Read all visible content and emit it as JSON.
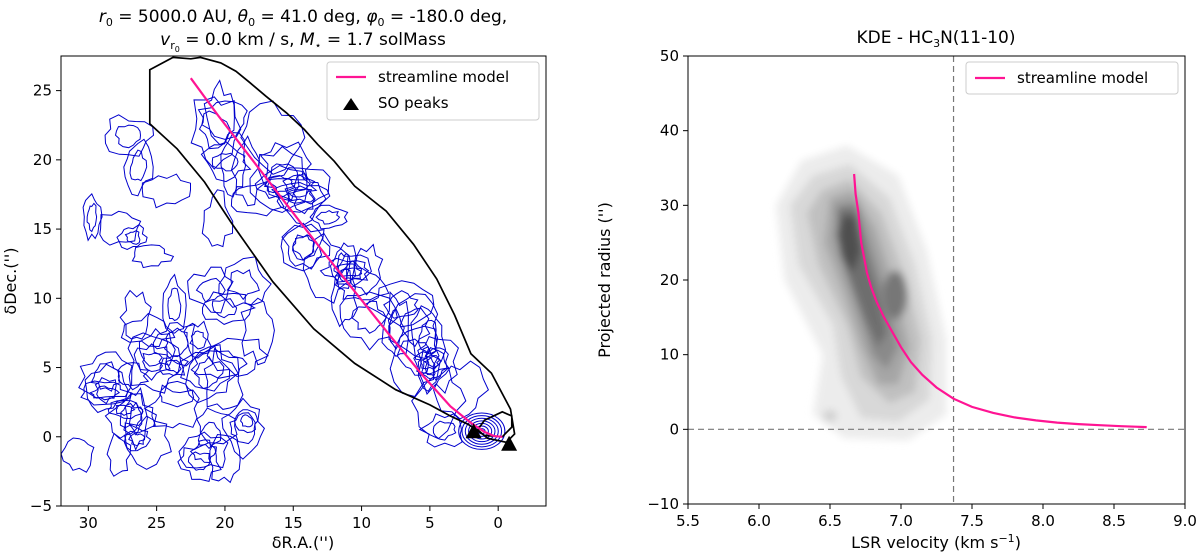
{
  "chart_data": [
    {
      "type": "line",
      "panel": "left",
      "title_line1_parts": [
        "r",
        "0",
        " = 5000.0 AU, ",
        "θ",
        "0",
        " = 41.0 deg, ",
        "φ",
        "0",
        " = -180.0 deg,"
      ],
      "title_line2_parts": [
        "v",
        "r",
        "0",
        " = 0.0 km / s,  ",
        "M",
        "⋆",
        " = 1.7 solMass"
      ],
      "xlabel": "δR.A.('')",
      "ylabel": "δDec.('')",
      "xlim": [
        32,
        -3.5
      ],
      "ylim": [
        -5,
        27.5
      ],
      "xticks": [
        30,
        25,
        20,
        15,
        10,
        5,
        0
      ],
      "yticks": [
        -5,
        0,
        5,
        10,
        15,
        20,
        25
      ],
      "legend": [
        "streamline model",
        "SO peaks"
      ],
      "legend_position": "top-right",
      "streamline": {
        "color": "#ff1493",
        "x": [
          22.5,
          20.5,
          18,
          15.5,
          13,
          10.5,
          8,
          5.5,
          3.5,
          2,
          1,
          0.3,
          -0.3
        ],
        "y": [
          25.9,
          23.2,
          20,
          16.8,
          13.6,
          10.5,
          7.4,
          4.4,
          2.2,
          1.0,
          0.35,
          0.05,
          0.0
        ]
      },
      "so_peaks": {
        "x": [
          1.8,
          -0.8
        ],
        "y": [
          0.4,
          -0.5
        ]
      },
      "mask_outline": {
        "x": [
          22.5,
          23.8,
          25.5,
          25.5,
          23.5,
          21.5,
          19.5,
          16.5,
          13.5,
          10.5,
          7.5,
          5.0,
          3.5,
          2.2,
          1.0,
          -0.3,
          -1.0,
          -1.0,
          -0.3,
          1.0,
          1.5,
          0.8,
          -0.6,
          -1.2,
          -0.9,
          0.5,
          2.0,
          3.2,
          4.5,
          6.2,
          8.2,
          10.5,
          12.0,
          13.2,
          14.2,
          15.5,
          17.0,
          18.2,
          19.2,
          20.3,
          21.8,
          22.5
        ],
        "y": [
          27.3,
          27.4,
          26.5,
          22.6,
          20.8,
          18.4,
          15.4,
          11.2,
          7.8,
          5.3,
          3.4,
          2.3,
          1.5,
          0.9,
          0.1,
          0.0,
          0.7,
          1.5,
          1.8,
          1.2,
          0.5,
          -0.1,
          -0.4,
          0.2,
          2.0,
          4.6,
          6.0,
          8.8,
          11.4,
          13.9,
          16.3,
          18.1,
          19.9,
          21.1,
          22.2,
          23.4,
          24.6,
          25.6,
          26.4,
          27.0,
          27.4,
          27.3
        ]
      },
      "contour_color": "#0000cd"
    },
    {
      "type": "line",
      "panel": "right",
      "title_parts": [
        "KDE - HC",
        "3",
        "N(11-10)"
      ],
      "xlabel_parts": [
        "LSR velocity (km s",
        "−1",
        ")"
      ],
      "ylabel": "Projected radius ('')",
      "xlim": [
        5.5,
        9.0
      ],
      "ylim": [
        -10,
        50
      ],
      "xticks": [
        "5.5",
        "6.0",
        "6.5",
        "7.0",
        "7.5",
        "8.0",
        "8.5",
        "9.0"
      ],
      "yticks": [
        "−10",
        "0",
        "10",
        "20",
        "30",
        "40",
        "50"
      ],
      "legend": [
        "streamline model"
      ],
      "legend_position": "top-right",
      "vline_x": 7.37,
      "hline_y": 0,
      "streamline": {
        "color": "#ff1493",
        "x": [
          6.67,
          6.68,
          6.7,
          6.71,
          6.72,
          6.74,
          6.76,
          6.79,
          6.83,
          6.88,
          6.94,
          7.0,
          7.07,
          7.15,
          7.25,
          7.37,
          7.5,
          7.65,
          7.8,
          7.95,
          8.1,
          8.25,
          8.4,
          8.55,
          8.65,
          8.73
        ],
        "y": [
          34.2,
          31.5,
          29.0,
          27.0,
          25.0,
          23.0,
          21.0,
          19.0,
          17.0,
          15.0,
          13.0,
          11.0,
          9.0,
          7.3,
          5.6,
          4.1,
          3.0,
          2.2,
          1.6,
          1.2,
          0.9,
          0.7,
          0.55,
          0.42,
          0.35,
          0.3
        ]
      }
    }
  ]
}
